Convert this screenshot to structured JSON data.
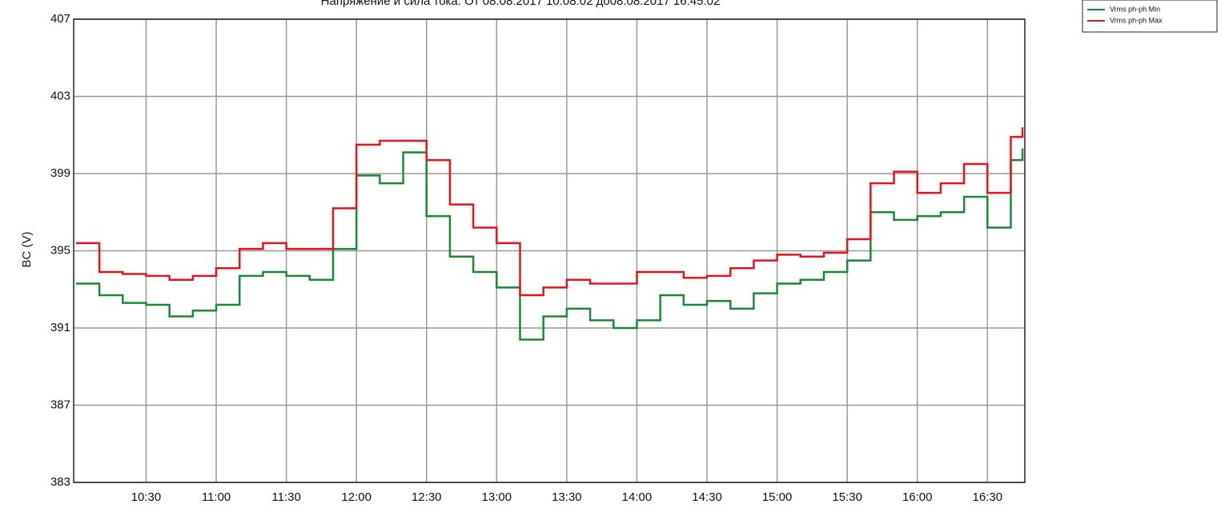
{
  "chart_data": {
    "type": "line",
    "title": "Напряжение и сила тока. От 08.08.2017 10:08:02 до08.08.2017 16:45:02",
    "y_label": "BC (V)",
    "x": [
      "10:00",
      "10:10",
      "10:20",
      "10:30",
      "10:40",
      "10:50",
      "11:00",
      "11:10",
      "11:20",
      "11:30",
      "11:40",
      "11:50",
      "12:00",
      "12:10",
      "12:20",
      "12:30",
      "12:40",
      "12:50",
      "13:00",
      "13:10",
      "13:20",
      "13:30",
      "13:40",
      "13:50",
      "14:00",
      "14:10",
      "14:20",
      "14:30",
      "14:40",
      "14:50",
      "15:00",
      "15:10",
      "15:20",
      "15:30",
      "15:40",
      "15:50",
      "16:00",
      "16:10",
      "16:20",
      "16:30",
      "16:40",
      "16:45"
    ],
    "series": [
      {
        "name": "Vrms ph-ph Min",
        "color": "#1a8a3a",
        "values": [
          393.3,
          392.7,
          392.3,
          392.2,
          391.6,
          391.9,
          392.2,
          393.7,
          393.9,
          393.7,
          393.5,
          395.1,
          398.9,
          398.5,
          400.1,
          396.8,
          394.7,
          393.9,
          393.1,
          390.4,
          391.6,
          392.0,
          391.4,
          391.0,
          391.4,
          392.7,
          392.2,
          392.4,
          392.0,
          392.8,
          393.3,
          393.5,
          393.9,
          394.5,
          397.0,
          396.6,
          396.8,
          397.0,
          397.8,
          396.2,
          399.7,
          400.3
        ]
      },
      {
        "name": "Vrms ph-ph Max",
        "color": "#e8141c",
        "values": [
          395.4,
          393.9,
          393.8,
          393.7,
          393.5,
          393.7,
          394.1,
          395.1,
          395.4,
          395.1,
          395.1,
          397.2,
          400.5,
          400.7,
          400.7,
          399.7,
          397.4,
          396.2,
          395.4,
          392.7,
          393.1,
          393.5,
          393.3,
          393.3,
          393.9,
          393.9,
          393.6,
          393.7,
          394.1,
          394.5,
          394.8,
          394.7,
          394.9,
          395.6,
          398.5,
          399.1,
          398.0,
          398.5,
          399.5,
          398.0,
          400.9,
          401.4
        ]
      }
    ],
    "xlim": [
      "09:59",
      "16:46"
    ],
    "xticks": [
      "10:30",
      "11:00",
      "11:30",
      "12:00",
      "12:30",
      "13:00",
      "13:30",
      "14:00",
      "14:30",
      "15:00",
      "15:30",
      "16:00",
      "16:30"
    ],
    "ylim": [
      383,
      407
    ],
    "yticks": [
      383,
      387,
      391,
      395,
      399,
      403,
      407
    ],
    "grid": true,
    "step": true,
    "legend": "top-right"
  }
}
